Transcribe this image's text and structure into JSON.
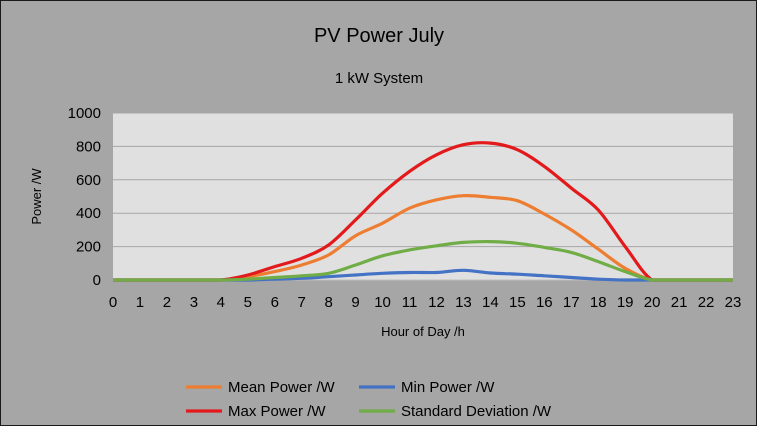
{
  "chart_data": {
    "type": "line",
    "title": "PV Power July",
    "subtitle": "1 kW System",
    "xlabel": "Hour of Day /h",
    "ylabel": "Power /W",
    "xlim": [
      0,
      23
    ],
    "ylim": [
      0,
      1000
    ],
    "x_ticks": [
      "0",
      "1",
      "2",
      "3",
      "4",
      "5",
      "6",
      "7",
      "8",
      "9",
      "10",
      "11",
      "12",
      "13",
      "14",
      "15",
      "16",
      "17",
      "18",
      "19",
      "20",
      "21",
      "22",
      "23"
    ],
    "y_ticks": [
      "0",
      "200",
      "400",
      "600",
      "800",
      "1000"
    ],
    "grid": true,
    "legend_position": "bottom",
    "x": [
      0,
      1,
      2,
      3,
      4,
      5,
      6,
      7,
      8,
      9,
      10,
      11,
      12,
      13,
      14,
      15,
      16,
      17,
      18,
      19,
      20,
      21,
      22,
      23
    ],
    "series": [
      {
        "name": "Mean Power /W",
        "color": "#ed7d31",
        "values": [
          0,
          0,
          0,
          0,
          0,
          20,
          50,
          90,
          150,
          265,
          340,
          430,
          480,
          505,
          495,
          475,
          395,
          300,
          185,
          70,
          0,
          0,
          0,
          0
        ]
      },
      {
        "name": "Min Power /W",
        "color": "#4472c4",
        "values": [
          0,
          0,
          0,
          0,
          0,
          0,
          5,
          10,
          20,
          30,
          40,
          45,
          45,
          58,
          42,
          35,
          25,
          15,
          5,
          0,
          0,
          0,
          0,
          0
        ]
      },
      {
        "name": "Max Power /W",
        "color": "#e31a1c",
        "values": [
          0,
          0,
          0,
          0,
          0,
          30,
          80,
          130,
          210,
          360,
          520,
          650,
          750,
          810,
          820,
          780,
          680,
          550,
          420,
          200,
          0,
          0,
          0,
          0
        ]
      },
      {
        "name": "Standard Deviation /W",
        "color": "#70ad47",
        "values": [
          0,
          0,
          0,
          0,
          0,
          5,
          15,
          25,
          40,
          90,
          145,
          180,
          205,
          225,
          230,
          220,
          195,
          165,
          110,
          50,
          0,
          0,
          0,
          0
        ]
      }
    ],
    "plot_background": "#e0e0e0",
    "gridline_color": "#a6a6a6"
  }
}
